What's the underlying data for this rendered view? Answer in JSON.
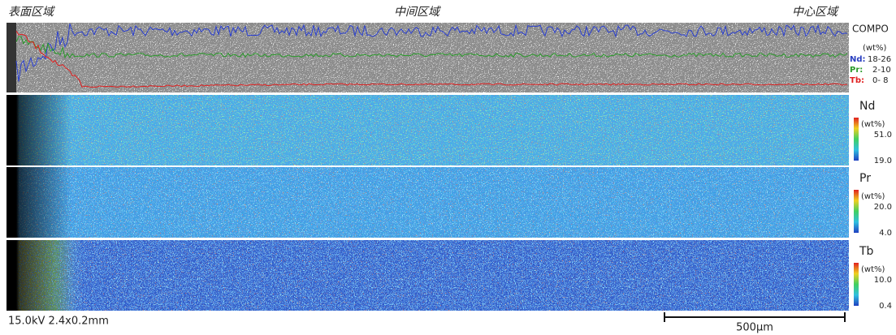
{
  "regions": [
    "表面区域",
    "中间区域",
    "中心区域"
  ],
  "compo": {
    "title": "COMPO",
    "unit": "(wt%)",
    "legend": [
      {
        "label": "Nd:",
        "range": "18-26"
      },
      {
        "label": "Pr:",
        "range": "2-10"
      },
      {
        "label": "Tb:",
        "range": "0- 8"
      }
    ]
  },
  "maps": [
    {
      "element": "Nd",
      "unit": "(wt%)",
      "max": "51.0",
      "min": "19.0"
    },
    {
      "element": "Pr",
      "unit": "(wt%)",
      "max": "20.0",
      "min": "4.0"
    },
    {
      "element": "Tb",
      "unit": "(wt%)",
      "max": "10.0",
      "min": "0.4"
    }
  ],
  "footer": {
    "conditions": "15.0kV 2.4x0.2mm",
    "scale": "500μm"
  }
}
